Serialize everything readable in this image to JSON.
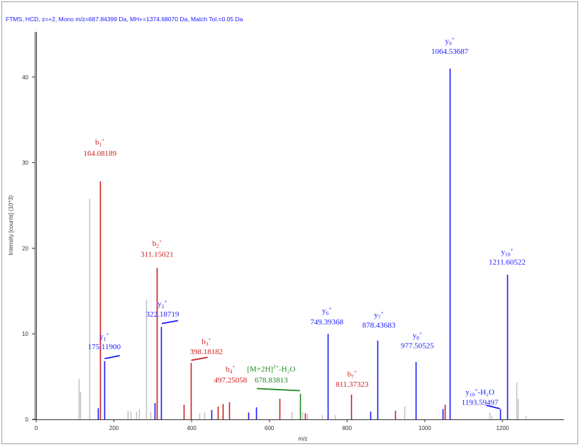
{
  "chart_data": {
    "type": "bar",
    "title": "FTMS, HCD, z=+2, Mono m/z=687.84399 Da, MH+=1374.68070 Da, Match Tol.=0.05 Da",
    "xlabel": "m/z",
    "ylabel": "Intensity [counts] (10^3)",
    "xlim": [
      0,
      1380
    ],
    "ylim": [
      0,
      45
    ],
    "xticks": [
      0,
      200,
      400,
      600,
      800,
      1000,
      1200
    ],
    "yticks": [
      0,
      10,
      20,
      30,
      40
    ],
    "grid": false,
    "colors": {
      "unmatched": "#c4c4c4",
      "b": "#cc1f1f",
      "y": "#1a1aff",
      "precursor": "#1e8c1e",
      "axis": "#333333"
    },
    "peaks": [
      {
        "mz": 110,
        "intensity": 4.7,
        "ion": "none"
      },
      {
        "mz": 114,
        "intensity": 3.2,
        "ion": "none"
      },
      {
        "mz": 136,
        "intensity": 25.8,
        "ion": "none"
      },
      {
        "mz": 158,
        "intensity": 1.3,
        "ion": "y"
      },
      {
        "mz": 164.08,
        "intensity": 27.8,
        "ion": "b"
      },
      {
        "mz": 175.12,
        "intensity": 6.8,
        "ion": "y"
      },
      {
        "mz": 235,
        "intensity": 1.0,
        "ion": "none"
      },
      {
        "mz": 243,
        "intensity": 0.9,
        "ion": "none"
      },
      {
        "mz": 258,
        "intensity": 0.9,
        "ion": "none"
      },
      {
        "mz": 264,
        "intensity": 1.2,
        "ion": "none"
      },
      {
        "mz": 283,
        "intensity": 14.0,
        "ion": "none"
      },
      {
        "mz": 294,
        "intensity": 0.9,
        "ion": "none"
      },
      {
        "mz": 305,
        "intensity": 1.9,
        "ion": "y"
      },
      {
        "mz": 311.15,
        "intensity": 17.7,
        "ion": "b"
      },
      {
        "mz": 322.19,
        "intensity": 10.8,
        "ion": "y"
      },
      {
        "mz": 380,
        "intensity": 1.7,
        "ion": "b"
      },
      {
        "mz": 398.18,
        "intensity": 6.6,
        "ion": "b"
      },
      {
        "mz": 420,
        "intensity": 0.7,
        "ion": "none"
      },
      {
        "mz": 432,
        "intensity": 0.8,
        "ion": "none"
      },
      {
        "mz": 450,
        "intensity": 1.1,
        "ion": "y"
      },
      {
        "mz": 468,
        "intensity": 1.5,
        "ion": "b"
      },
      {
        "mz": 480,
        "intensity": 1.8,
        "ion": "b"
      },
      {
        "mz": 497.25,
        "intensity": 2.0,
        "ion": "b"
      },
      {
        "mz": 545,
        "intensity": 0.8,
        "ion": "y"
      },
      {
        "mz": 565,
        "intensity": 1.4,
        "ion": "y"
      },
      {
        "mz": 626,
        "intensity": 2.4,
        "ion": "b"
      },
      {
        "mz": 658,
        "intensity": 0.9,
        "ion": "none"
      },
      {
        "mz": 678.84,
        "intensity": 3.0,
        "ion": "precursor"
      },
      {
        "mz": 684,
        "intensity": 0.8,
        "ion": "none"
      },
      {
        "mz": 691,
        "intensity": 0.7,
        "ion": "b"
      },
      {
        "mz": 698,
        "intensity": 0.6,
        "ion": "none"
      },
      {
        "mz": 735,
        "intensity": 0.5,
        "ion": "none"
      },
      {
        "mz": 749.39,
        "intensity": 10.0,
        "ion": "y"
      },
      {
        "mz": 768,
        "intensity": 0.5,
        "ion": "none"
      },
      {
        "mz": 811.37,
        "intensity": 2.9,
        "ion": "b"
      },
      {
        "mz": 860,
        "intensity": 0.9,
        "ion": "y"
      },
      {
        "mz": 878.44,
        "intensity": 9.2,
        "ion": "y"
      },
      {
        "mz": 923,
        "intensity": 1.0,
        "ion": "b"
      },
      {
        "mz": 948,
        "intensity": 1.5,
        "ion": "none"
      },
      {
        "mz": 977.51,
        "intensity": 6.7,
        "ion": "y"
      },
      {
        "mz": 1046,
        "intensity": 1.2,
        "ion": "y"
      },
      {
        "mz": 1052,
        "intensity": 1.7,
        "ion": "b"
      },
      {
        "mz": 1064.54,
        "intensity": 41.0,
        "ion": "y"
      },
      {
        "mz": 1166,
        "intensity": 0.8,
        "ion": "none"
      },
      {
        "mz": 1172,
        "intensity": 0.4,
        "ion": "none"
      },
      {
        "mz": 1193.59,
        "intensity": 1.2,
        "ion": "y"
      },
      {
        "mz": 1211.61,
        "intensity": 16.9,
        "ion": "y"
      },
      {
        "mz": 1236,
        "intensity": 4.3,
        "ion": "none"
      },
      {
        "mz": 1240,
        "intensity": 2.4,
        "ion": "none"
      },
      {
        "mz": 1260,
        "intensity": 0.4,
        "ion": "none"
      }
    ],
    "annotations": [
      {
        "label": "b",
        "sub": "1",
        "sup": "+",
        "mz_text": "164.08189",
        "ion": "b",
        "anchor_mz": 164.08,
        "label_y": 32.1,
        "value_y": 30.8,
        "connector": false
      },
      {
        "label": "y",
        "sub": "1",
        "sup": "+",
        "mz_text": "175.11900",
        "ion": "y",
        "anchor_mz": 175.12,
        "label_y": 9.4,
        "value_y": 8.2,
        "connector": true,
        "line": [
          [
            176,
            7.1
          ],
          [
            215,
            7.45
          ]
        ]
      },
      {
        "label": "b",
        "sub": "2",
        "sup": "+",
        "mz_text": "311.15021",
        "ion": "b",
        "anchor_mz": 311.15,
        "label_y": 20.3,
        "value_y": 19.0,
        "connector": false
      },
      {
        "label": "y",
        "sub": "2",
        "sup": "+",
        "mz_text": "322.18719",
        "ion": "y",
        "anchor_mz": 325,
        "label_y": 13.2,
        "value_y": 12.0,
        "connector": true,
        "line": [
          [
            323,
            11.2
          ],
          [
            365,
            11.55
          ]
        ]
      },
      {
        "label": "b",
        "sub": "3",
        "sup": "+",
        "mz_text": "398.18182",
        "ion": "b",
        "anchor_mz": 438,
        "label_y": 8.8,
        "value_y": 7.6,
        "connector": true,
        "line": [
          [
            399,
            6.9
          ],
          [
            441,
            7.25
          ]
        ]
      },
      {
        "label": "b",
        "sub": "4",
        "sup": "+",
        "mz_text": "497.25058",
        "ion": "b",
        "anchor_mz": 500,
        "label_y": 5.6,
        "value_y": 4.3,
        "connector": false
      },
      {
        "label": "[M+2H]",
        "sub": "",
        "sup": "2+",
        "suffix": "-H2O",
        "mz_text": "678.83813",
        "ion": "precursor",
        "anchor_mz": 605,
        "label_y": 5.6,
        "value_y": 4.3,
        "connector": true,
        "line": [
          [
            568,
            3.6
          ],
          [
            679,
            3.35
          ]
        ]
      },
      {
        "label": "y",
        "sub": "6",
        "sup": "+",
        "mz_text": "749.39368",
        "ion": "y",
        "anchor_mz": 748,
        "label_y": 12.4,
        "value_y": 11.1,
        "connector": false
      },
      {
        "label": "b",
        "sub": "7",
        "sup": "+",
        "mz_text": "811.37323",
        "ion": "b",
        "anchor_mz": 813,
        "label_y": 5.0,
        "value_y": 3.8,
        "connector": false
      },
      {
        "label": "y",
        "sub": "7",
        "sup": "+",
        "mz_text": "878.43683",
        "ion": "y",
        "anchor_mz": 882,
        "label_y": 11.9,
        "value_y": 10.7,
        "connector": false
      },
      {
        "label": "y",
        "sub": "8",
        "sup": "+",
        "mz_text": "977.50525",
        "ion": "y",
        "anchor_mz": 981,
        "label_y": 9.5,
        "value_y": 8.3,
        "connector": false
      },
      {
        "label": "y",
        "sub": "9",
        "sup": "+",
        "mz_text": "1064.53687",
        "ion": "y",
        "anchor_mz": 1064.54,
        "label_y": 43.9,
        "value_y": 42.7,
        "connector": false
      },
      {
        "label": "y",
        "sub": "10",
        "sup": "+",
        "suffix": "-H2O",
        "mz_text": "1193.59497",
        "ion": "y",
        "anchor_mz": 1142,
        "label_y": 2.9,
        "value_y": 1.7,
        "connector": true,
        "line": [
          [
            1158,
            1.65
          ],
          [
            1193,
            1.25
          ]
        ]
      },
      {
        "label": "y",
        "sub": "10",
        "sup": "+",
        "mz_text": "1211.60522",
        "ion": "y",
        "anchor_mz": 1212,
        "label_y": 19.3,
        "value_y": 18.1,
        "connector": false
      }
    ]
  }
}
